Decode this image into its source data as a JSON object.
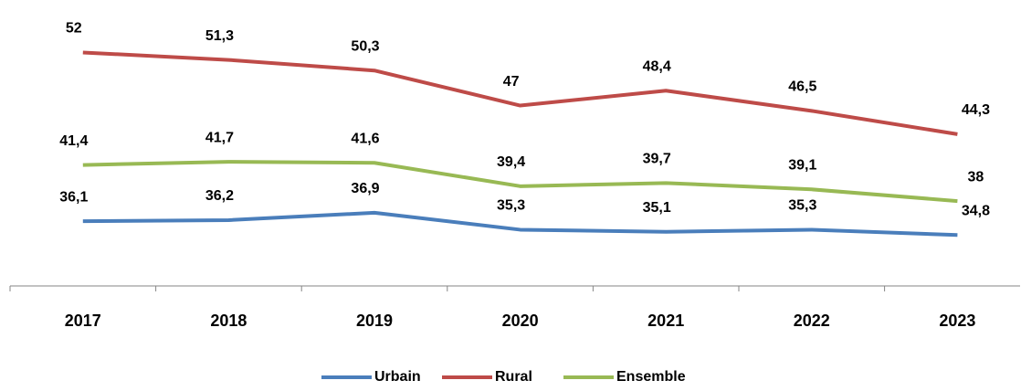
{
  "chart_data": {
    "type": "line",
    "categories": [
      "2017",
      "2018",
      "2019",
      "2020",
      "2021",
      "2022",
      "2023"
    ],
    "series": [
      {
        "name": "Urbain",
        "color": "#4a7ebb",
        "values": [
          36.1,
          36.2,
          36.9,
          35.3,
          35.1,
          35.3,
          34.8
        ],
        "value_labels": [
          "36,1",
          "36,2",
          "36,9",
          "35,3",
          "35,1",
          "35,3",
          "34,8"
        ]
      },
      {
        "name": "Rural",
        "color": "#be4b48",
        "values": [
          52,
          51.3,
          50.3,
          47,
          48.4,
          46.5,
          44.3
        ],
        "value_labels": [
          "52",
          "51,3",
          "50,3",
          "47",
          "48,4",
          "46,5",
          "44,3"
        ]
      },
      {
        "name": "Ensemble",
        "color": "#98b954",
        "values": [
          41.4,
          41.7,
          41.6,
          39.4,
          39.7,
          39.1,
          38
        ],
        "value_labels": [
          "41,4",
          "41,7",
          "41,6",
          "39,4",
          "39,7",
          "39,1",
          "38"
        ]
      }
    ],
    "ylim": [
      30,
      56
    ],
    "grid": false,
    "legend": "bottom"
  }
}
